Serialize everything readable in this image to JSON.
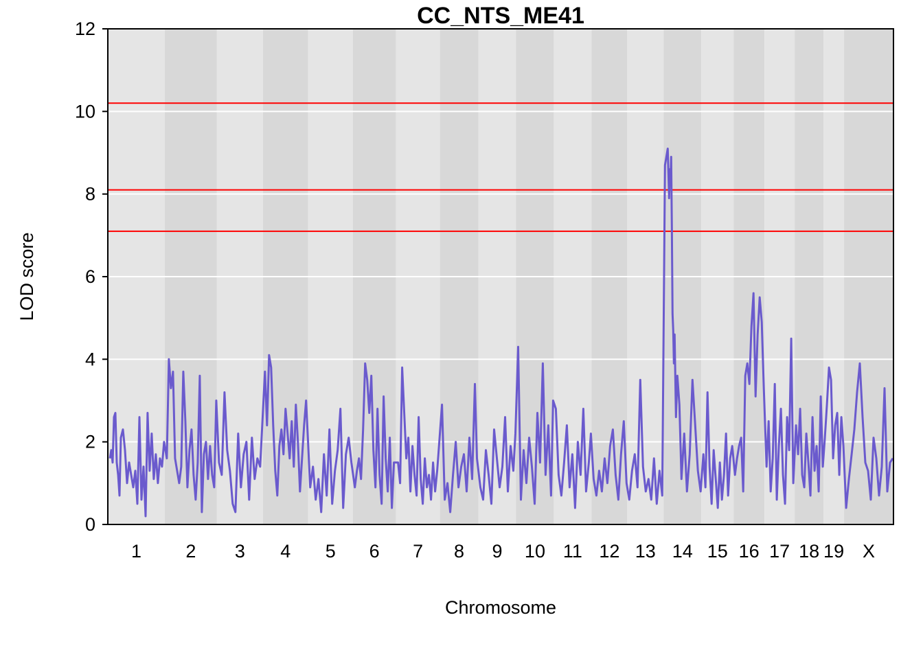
{
  "chart_data": {
    "type": "line",
    "title": "CC_NTS_ME41",
    "xlabel": "Chromosome",
    "ylabel": "LOD score",
    "ylim": [
      0,
      12
    ],
    "yticks": [
      0,
      2,
      4,
      6,
      8,
      10,
      12
    ],
    "grid": true,
    "line_color": "#6a5acd",
    "threshold_color": "#ff0000",
    "thresholds": [
      10.2,
      8.1,
      7.1
    ],
    "chromosomes": [
      {
        "label": "1",
        "start": 0,
        "end": 83
      },
      {
        "label": "2",
        "start": 83,
        "end": 159
      },
      {
        "label": "3",
        "start": 159,
        "end": 226
      },
      {
        "label": "4",
        "start": 226,
        "end": 292
      },
      {
        "label": "5",
        "start": 292,
        "end": 357
      },
      {
        "label": "6",
        "start": 357,
        "end": 420
      },
      {
        "label": "7",
        "start": 420,
        "end": 484
      },
      {
        "label": "8",
        "start": 484,
        "end": 540
      },
      {
        "label": "9",
        "start": 540,
        "end": 595
      },
      {
        "label": "10",
        "start": 595,
        "end": 650
      },
      {
        "label": "11",
        "start": 650,
        "end": 705
      },
      {
        "label": "12",
        "start": 705,
        "end": 757
      },
      {
        "label": "13",
        "start": 757,
        "end": 810
      },
      {
        "label": "14",
        "start": 810,
        "end": 865
      },
      {
        "label": "15",
        "start": 865,
        "end": 912
      },
      {
        "label": "16",
        "start": 912,
        "end": 957
      },
      {
        "label": "17",
        "start": 957,
        "end": 1001
      },
      {
        "label": "18",
        "start": 1001,
        "end": 1043
      },
      {
        "label": "19",
        "start": 1043,
        "end": 1073
      },
      {
        "label": "X",
        "start": 1073,
        "end": 1145
      }
    ],
    "series": [
      {
        "x": [
          3,
          5,
          7,
          9,
          11,
          13,
          15,
          17,
          19,
          22,
          25,
          28,
          31,
          34,
          37,
          40,
          43,
          46,
          49,
          52,
          55,
          58,
          61,
          64,
          67,
          70,
          73,
          76,
          79,
          82,
          86,
          89,
          92,
          95,
          98,
          101,
          104,
          107,
          110,
          113,
          116,
          119,
          122,
          125,
          128,
          131,
          134,
          137,
          140,
          143,
          146,
          149,
          152,
          155,
          158,
          162,
          166,
          170,
          174,
          178,
          182,
          186,
          190,
          194,
          198,
          202,
          206,
          210,
          214,
          218,
          222,
          229,
          232,
          235,
          238,
          241,
          244,
          247,
          250,
          253,
          256,
          259,
          262,
          265,
          268,
          271,
          274,
          277,
          280,
          283,
          286,
          289,
          295,
          299,
          303,
          307,
          311,
          315,
          319,
          323,
          327,
          331,
          335,
          339,
          343,
          347,
          351,
          355,
          360,
          363,
          366,
          369,
          372,
          375,
          378,
          381,
          384,
          387,
          390,
          393,
          396,
          399,
          402,
          405,
          408,
          411,
          414,
          417,
          423,
          426,
          429,
          432,
          435,
          438,
          441,
          444,
          447,
          450,
          453,
          456,
          459,
          462,
          465,
          468,
          471,
          474,
          477,
          480,
          487,
          491,
          495,
          499,
          503,
          507,
          511,
          515,
          519,
          523,
          527,
          531,
          535,
          538,
          543,
          547,
          551,
          555,
          559,
          563,
          567,
          571,
          575,
          579,
          583,
          587,
          591,
          594,
          598,
          602,
          606,
          610,
          614,
          618,
          622,
          626,
          630,
          634,
          638,
          642,
          646,
          649,
          653,
          657,
          661,
          665,
          669,
          673,
          677,
          681,
          685,
          689,
          693,
          697,
          701,
          704,
          708,
          712,
          716,
          720,
          724,
          728,
          732,
          736,
          740,
          744,
          748,
          752,
          756,
          760,
          764,
          768,
          772,
          776,
          780,
          784,
          788,
          792,
          796,
          800,
          804,
          808,
          812,
          814,
          816,
          818,
          819,
          820,
          821,
          822,
          823,
          824,
          825,
          826,
          828,
          830,
          833,
          836,
          840,
          844,
          848,
          852,
          856,
          860,
          864,
          868,
          871,
          874,
          877,
          880,
          883,
          886,
          889,
          892,
          895,
          898,
          901,
          904,
          907,
          910,
          914,
          917,
          920,
          923,
          926,
          929,
          932,
          935,
          938,
          941,
          944,
          947,
          950,
          953,
          956,
          960,
          963,
          966,
          969,
          972,
          975,
          978,
          981,
          984,
          987,
          990,
          993,
          996,
          999,
          1003,
          1006,
          1009,
          1012,
          1015,
          1018,
          1021,
          1024,
          1027,
          1030,
          1033,
          1036,
          1039,
          1042,
          1045,
          1048,
          1051,
          1054,
          1057,
          1060,
          1063,
          1066,
          1069,
          1072,
          1076,
          1080,
          1084,
          1088,
          1092,
          1096,
          1100,
          1104,
          1108,
          1112,
          1116,
          1120,
          1124,
          1128,
          1132,
          1136,
          1140,
          1144
        ],
        "y": [
          1.6,
          1.8,
          1.5,
          2.6,
          2.7,
          1.5,
          1.2,
          0.7,
          2.1,
          2.3,
          1.8,
          1.0,
          1.5,
          1.2,
          0.9,
          1.3,
          0.5,
          2.6,
          0.6,
          1.4,
          0.2,
          2.7,
          1.3,
          2.2,
          1.1,
          1.7,
          1.0,
          1.6,
          1.4,
          2.0,
          1.6,
          4.0,
          3.3,
          3.7,
          1.6,
          1.3,
          1.0,
          1.4,
          3.7,
          2.5,
          0.9,
          1.8,
          2.3,
          1.2,
          0.6,
          1.5,
          3.6,
          0.3,
          1.7,
          2.0,
          1.1,
          1.9,
          1.2,
          0.9,
          3.0,
          1.5,
          1.2,
          3.2,
          1.8,
          1.3,
          0.5,
          0.3,
          2.2,
          0.9,
          1.7,
          2.0,
          0.6,
          2.1,
          1.1,
          1.6,
          1.4,
          3.7,
          2.4,
          4.1,
          3.8,
          2.4,
          1.3,
          0.7,
          1.9,
          2.3,
          1.7,
          2.8,
          2.2,
          1.6,
          2.5,
          1.4,
          2.9,
          2.0,
          0.8,
          1.6,
          2.4,
          3.0,
          0.9,
          1.4,
          0.6,
          1.1,
          0.3,
          1.7,
          0.7,
          2.3,
          0.5,
          1.3,
          1.8,
          2.8,
          0.4,
          1.7,
          2.1,
          1.5,
          0.9,
          1.3,
          1.6,
          1.1,
          2.3,
          3.9,
          3.5,
          2.7,
          3.6,
          1.8,
          0.9,
          2.8,
          1.2,
          0.5,
          3.1,
          1.6,
          0.8,
          2.1,
          0.4,
          1.5,
          1.5,
          1.0,
          3.8,
          2.7,
          1.6,
          2.1,
          0.8,
          1.9,
          1.2,
          0.7,
          2.6,
          1.1,
          0.5,
          1.6,
          0.9,
          1.2,
          0.6,
          1.5,
          0.8,
          1.3,
          2.9,
          0.6,
          1.0,
          0.3,
          1.2,
          2.0,
          0.9,
          1.4,
          1.7,
          0.8,
          2.1,
          1.1,
          3.4,
          1.6,
          0.9,
          0.6,
          1.8,
          1.2,
          0.5,
          2.3,
          1.6,
          0.9,
          1.4,
          2.6,
          0.8,
          1.9,
          1.3,
          2.2,
          4.3,
          0.6,
          1.8,
          1.0,
          2.1,
          1.4,
          0.5,
          2.7,
          1.5,
          3.9,
          1.2,
          2.4,
          0.7,
          3.0,
          2.8,
          1.2,
          0.7,
          1.5,
          2.4,
          0.9,
          1.7,
          0.4,
          2.0,
          1.2,
          2.8,
          0.8,
          1.5,
          2.2,
          1.1,
          0.7,
          1.3,
          0.8,
          1.6,
          1.0,
          1.9,
          2.3,
          1.2,
          0.6,
          1.7,
          2.5,
          1.0,
          0.6,
          1.3,
          1.7,
          0.9,
          3.5,
          1.4,
          0.8,
          1.1,
          0.6,
          1.6,
          0.5,
          1.3,
          0.7,
          8.7,
          8.9,
          9.1,
          7.9,
          8.6,
          8.3,
          8.9,
          7.2,
          5.1,
          4.7,
          3.9,
          4.6,
          2.6,
          3.6,
          2.9,
          1.1,
          2.2,
          0.8,
          1.7,
          3.5,
          2.4,
          1.3,
          0.8,
          1.7,
          0.9,
          3.2,
          1.4,
          0.5,
          1.8,
          1.1,
          0.4,
          1.5,
          0.6,
          1.2,
          2.2,
          0.7,
          1.6,
          1.9,
          1.2,
          1.6,
          1.9,
          2.1,
          0.8,
          3.6,
          3.9,
          3.4,
          4.8,
          5.6,
          3.1,
          4.6,
          5.5,
          4.9,
          3.3,
          1.4,
          2.5,
          0.8,
          1.6,
          3.4,
          0.6,
          1.9,
          2.8,
          1.2,
          0.5,
          2.6,
          1.8,
          4.5,
          1.0,
          2.4,
          1.7,
          2.8,
          1.2,
          0.9,
          2.2,
          1.5,
          0.7,
          2.6,
          1.3,
          1.9,
          0.8,
          3.1,
          1.4,
          2.1,
          2.9,
          3.8,
          3.5,
          1.6,
          2.4,
          2.7,
          1.2,
          2.6,
          1.9,
          0.4,
          1.1,
          1.7,
          2.3,
          3.2,
          3.9,
          2.6,
          1.5,
          1.3,
          0.6,
          2.1,
          1.6,
          0.7,
          1.4,
          3.3,
          0.8,
          1.5,
          1.6
        ]
      }
    ]
  }
}
